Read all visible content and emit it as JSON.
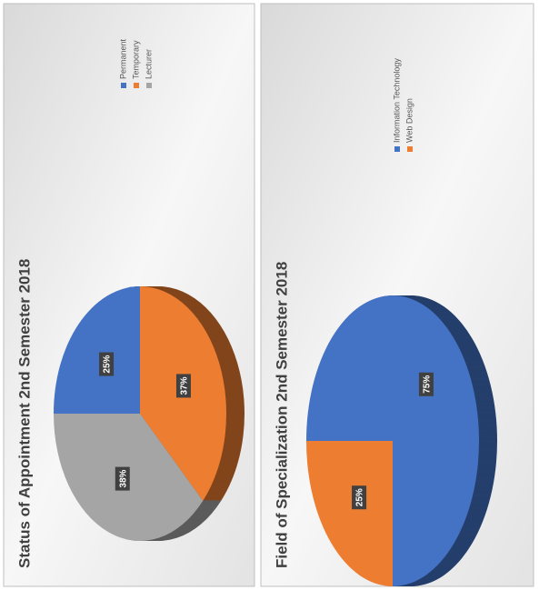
{
  "chart_data": [
    {
      "type": "pie",
      "title": "Status of Appointment 2nd Semester 2018",
      "categories": [
        "Permanent",
        "Temporary",
        "Lecturer"
      ],
      "values": [
        25,
        37,
        38
      ],
      "value_labels": [
        "25%",
        "37%",
        "38%"
      ],
      "colors": [
        "#4472c4",
        "#ed7d31",
        "#a5a5a5"
      ]
    },
    {
      "type": "pie",
      "title": "Field of Specialization 2nd Semester 2018",
      "categories": [
        "Information Technology",
        "Web Design"
      ],
      "values": [
        75,
        25
      ],
      "value_labels": [
        "75%",
        "25%"
      ],
      "colors": [
        "#4472c4",
        "#ed7d31"
      ]
    }
  ]
}
